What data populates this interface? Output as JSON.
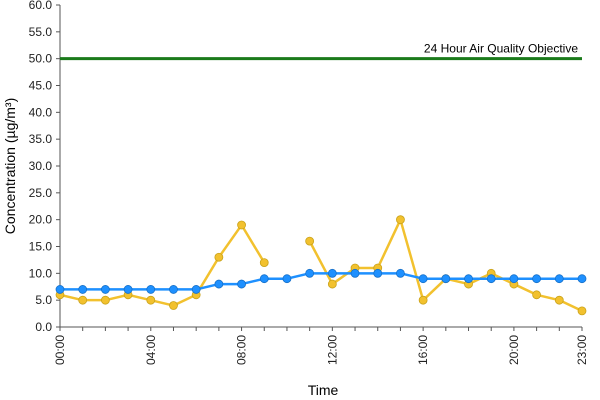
{
  "chart_data": {
    "type": "line",
    "title": "",
    "xlabel": "Time",
    "ylabel": "Concentration (µg/m³)",
    "ylim": [
      0,
      60
    ],
    "y_ticks": [
      "0.0",
      "5.0",
      "10.0",
      "15.0",
      "20.0",
      "25.0",
      "30.0",
      "35.0",
      "40.0",
      "45.0",
      "50.0",
      "55.0",
      "60.0"
    ],
    "x_ticks": [
      "00:00",
      "04:00",
      "08:00",
      "12:00",
      "16:00",
      "20:00",
      "23:00"
    ],
    "x_tick_hours": [
      0,
      4,
      8,
      12,
      16,
      20,
      23
    ],
    "x": [
      0,
      1,
      2,
      3,
      4,
      5,
      6,
      7,
      8,
      9,
      10,
      11,
      12,
      13,
      14,
      15,
      16,
      17,
      18,
      19,
      20,
      21,
      22,
      23
    ],
    "grid": false,
    "reference_line": {
      "label": "24 Hour Air Quality Objective",
      "value": 50,
      "color": "#1a7a1a"
    },
    "series": [
      {
        "color": "#f2c12e",
        "values": [
          6,
          5,
          5,
          6,
          5,
          4,
          6,
          13,
          19,
          12,
          null,
          16,
          8,
          11,
          11,
          20,
          5,
          9,
          8,
          10,
          8,
          6,
          5,
          3
        ]
      },
      {
        "color": "#1e90ff",
        "values": [
          7,
          7,
          7,
          7,
          7,
          7,
          7,
          8,
          8,
          9,
          9,
          10,
          10,
          10,
          10,
          10,
          9,
          9,
          9,
          9,
          9,
          9,
          9,
          9
        ]
      }
    ]
  }
}
